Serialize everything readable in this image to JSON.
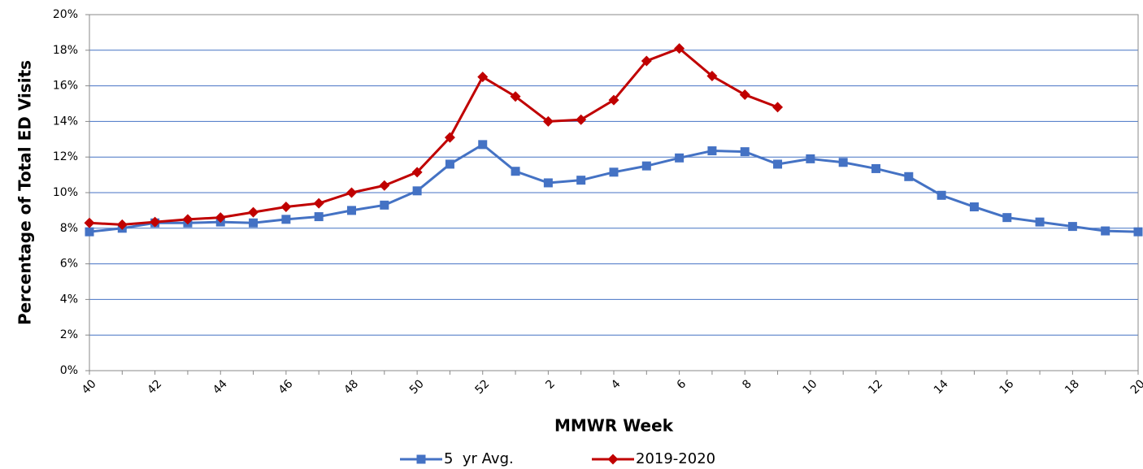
{
  "chart_data": {
    "type": "line",
    "x_label": "MMWR Week",
    "y_label": "Percentage of Total ED Visits",
    "categories": [
      40,
      null,
      42,
      null,
      44,
      null,
      46,
      null,
      48,
      null,
      50,
      null,
      52,
      null,
      2,
      null,
      4,
      null,
      6,
      null,
      8,
      null,
      10,
      null,
      12,
      null,
      14,
      null,
      16,
      null,
      18,
      null,
      20
    ],
    "series": [
      {
        "name": "5  yr Avg.",
        "color": "#4472c4",
        "marker": "square",
        "values": [
          7.8,
          8.0,
          8.3,
          8.3,
          8.35,
          8.3,
          8.5,
          8.65,
          9.0,
          9.3,
          10.1,
          11.6,
          12.7,
          11.2,
          10.55,
          10.7,
          11.15,
          11.5,
          11.95,
          12.35,
          12.3,
          11.6,
          11.9,
          11.7,
          11.35,
          10.9,
          9.85,
          9.2,
          8.6,
          8.35,
          8.1,
          7.85,
          7.8
        ]
      },
      {
        "name": "2019-2020",
        "color": "#c00000",
        "marker": "diamond",
        "values": [
          8.3,
          8.2,
          8.35,
          8.5,
          8.6,
          8.9,
          9.2,
          9.4,
          10.0,
          10.4,
          11.15,
          13.1,
          16.5,
          15.4,
          14.0,
          14.1,
          15.2,
          17.4,
          18.1,
          16.55,
          15.5,
          14.8,
          null,
          null,
          null,
          null,
          null,
          null,
          null,
          null,
          null,
          null,
          null
        ]
      }
    ],
    "ylim": [
      0,
      20
    ],
    "yticks": [
      {
        "value": 0,
        "label": "0%"
      },
      {
        "value": 2,
        "label": "2%"
      },
      {
        "value": 4,
        "label": "4%"
      },
      {
        "value": 6,
        "label": "6%"
      },
      {
        "value": 8,
        "label": "8%"
      },
      {
        "value": 10,
        "label": "10%"
      },
      {
        "value": 12,
        "label": "12%"
      },
      {
        "value": 14,
        "label": "14%"
      },
      {
        "value": 16,
        "label": "16%"
      },
      {
        "value": 18,
        "label": "18%"
      },
      {
        "value": 20,
        "label": "20%"
      }
    ],
    "grid": true,
    "legend": "bottom"
  }
}
